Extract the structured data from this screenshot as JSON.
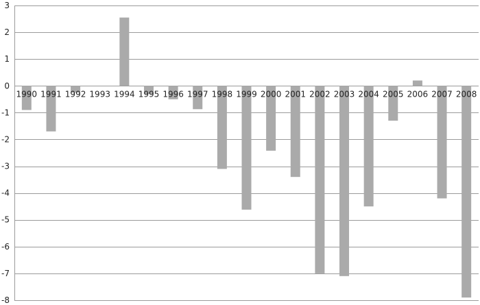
{
  "chart_data": {
    "type": "bar",
    "title": "",
    "xlabel": "",
    "ylabel": "",
    "ylim": [
      -8,
      3
    ],
    "yticks": [
      3,
      2,
      1,
      0,
      -1,
      -2,
      -3,
      -4,
      -5,
      -6,
      -7,
      -8
    ],
    "grid": true,
    "legend": "none",
    "categories": [
      "1990",
      "1991",
      "1992",
      "1993",
      "1994",
      "1995",
      "1996",
      "1997",
      "1998",
      "1999",
      "2000",
      "2001",
      "2002",
      "2003",
      "2004",
      "2005",
      "2006",
      "2007",
      "2008"
    ],
    "values": [
      -0.9,
      -1.7,
      -0.25,
      0.0,
      2.55,
      -0.3,
      -0.5,
      -0.87,
      -3.1,
      -4.62,
      -2.42,
      -3.4,
      -7.0,
      -7.1,
      -4.5,
      -1.3,
      0.2,
      -4.2,
      -7.9
    ],
    "bar_color": "#aaaaaa",
    "grid_color": "#9a9a9a"
  }
}
